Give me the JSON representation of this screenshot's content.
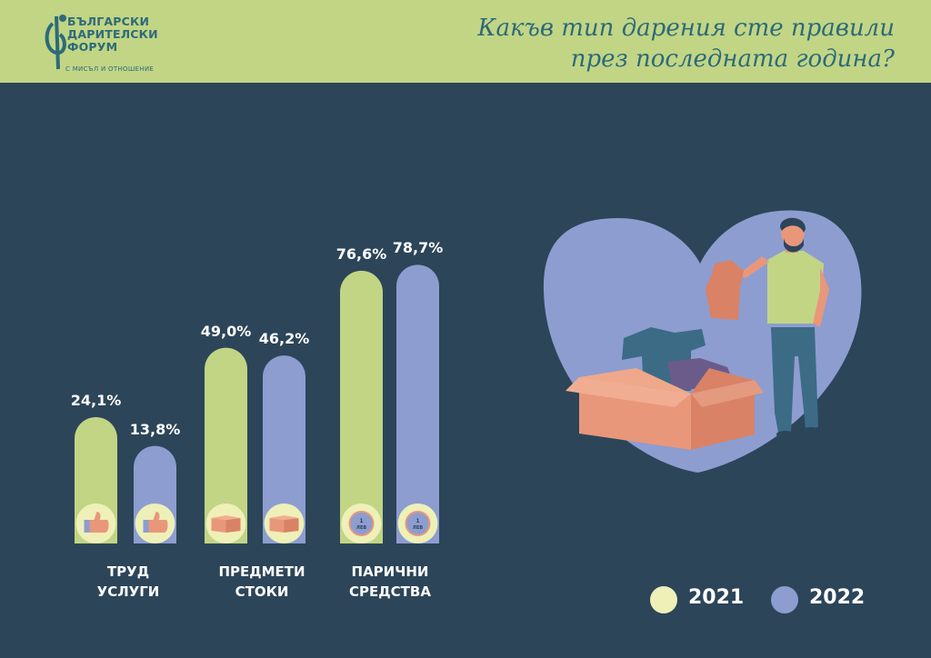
{
  "header": {
    "logo_lines": [
      "БЪЛГАРСКИ",
      "ДАРИТЕЛСКИ",
      "ФОРУМ"
    ],
    "logo_tagline": "С МИСЪЛ И ОТНОШЕНИЕ",
    "title_line1": "Какъв тип дарения сте правили",
    "title_line2": "през последната година?"
  },
  "colors": {
    "s2021": "#c1d585",
    "s2022": "#8d9dd0",
    "legend2021": "#eef0b8",
    "background": "#2c4559",
    "accent": "#2d6a79"
  },
  "chart_data": {
    "type": "bar",
    "title": "Какъв тип дарения сте правили през последната година?",
    "categories": [
      "ТРУД УСЛУГИ",
      "ПРЕДМЕТИ СТОКИ",
      "ПАРИЧНИ СРЕДСТВА"
    ],
    "category_lines": [
      [
        "ТРУД",
        "УСЛУГИ"
      ],
      [
        "ПРЕДМЕТИ",
        "СТОКИ"
      ],
      [
        "ПАРИЧНИ",
        "СРЕДСТВА"
      ]
    ],
    "series": [
      {
        "name": "2021",
        "values": [
          24.1,
          49.0,
          76.6
        ],
        "labels": [
          "24,1%",
          "49,0%",
          "76,6%"
        ]
      },
      {
        "name": "2022",
        "values": [
          13.8,
          46.2,
          78.7
        ],
        "labels": [
          "13,8%",
          "46,2%",
          "78,7%"
        ]
      }
    ],
    "icons": [
      "thumbs-up-icon",
      "box-icon",
      "coin-icon"
    ],
    "coin_text": [
      "1",
      "ЛЕВ"
    ],
    "ylim": [
      0,
      100
    ],
    "legend_position": "bottom-right"
  }
}
